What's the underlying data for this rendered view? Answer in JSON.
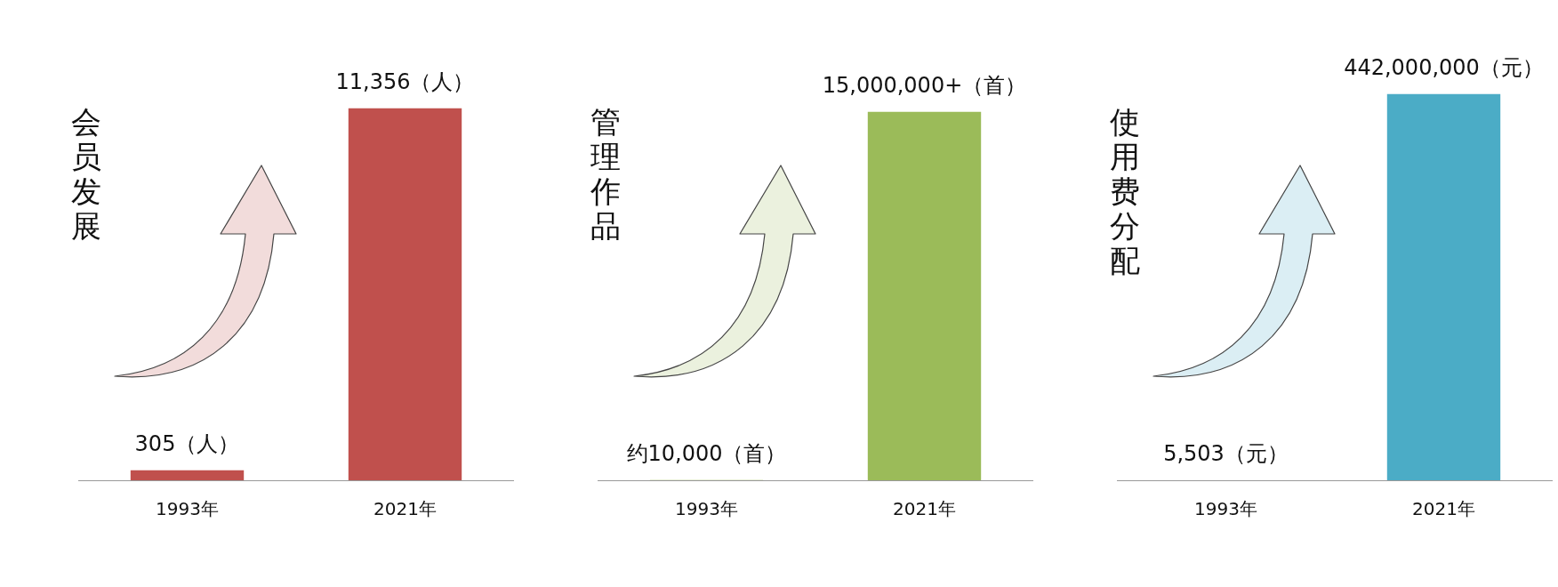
{
  "chart_data": [
    {
      "type": "bar",
      "title": "会员发展",
      "categories": [
        "1993年",
        "2021年"
      ],
      "values": [
        305,
        11356
      ],
      "color": "#c0504d",
      "value_labels": [
        "305（人）",
        "11,356（人）"
      ],
      "grid": false,
      "legend": false
    },
    {
      "type": "bar",
      "title": "管理作品",
      "categories": [
        "1993年",
        "2021年"
      ],
      "values": [
        10000,
        15000000
      ],
      "color": "#9bbb59",
      "value_labels": [
        "约10,000（首）",
        "15,000,000+（首）"
      ],
      "grid": false,
      "legend": false
    },
    {
      "type": "bar",
      "title": "使用费分配",
      "categories": [
        "1993年",
        "2021年"
      ],
      "values": [
        5503,
        442000000
      ],
      "color": "#4bacc6",
      "value_labels": [
        "5,503（元）",
        "442,000,000（元）"
      ],
      "grid": false,
      "legend": false
    }
  ]
}
